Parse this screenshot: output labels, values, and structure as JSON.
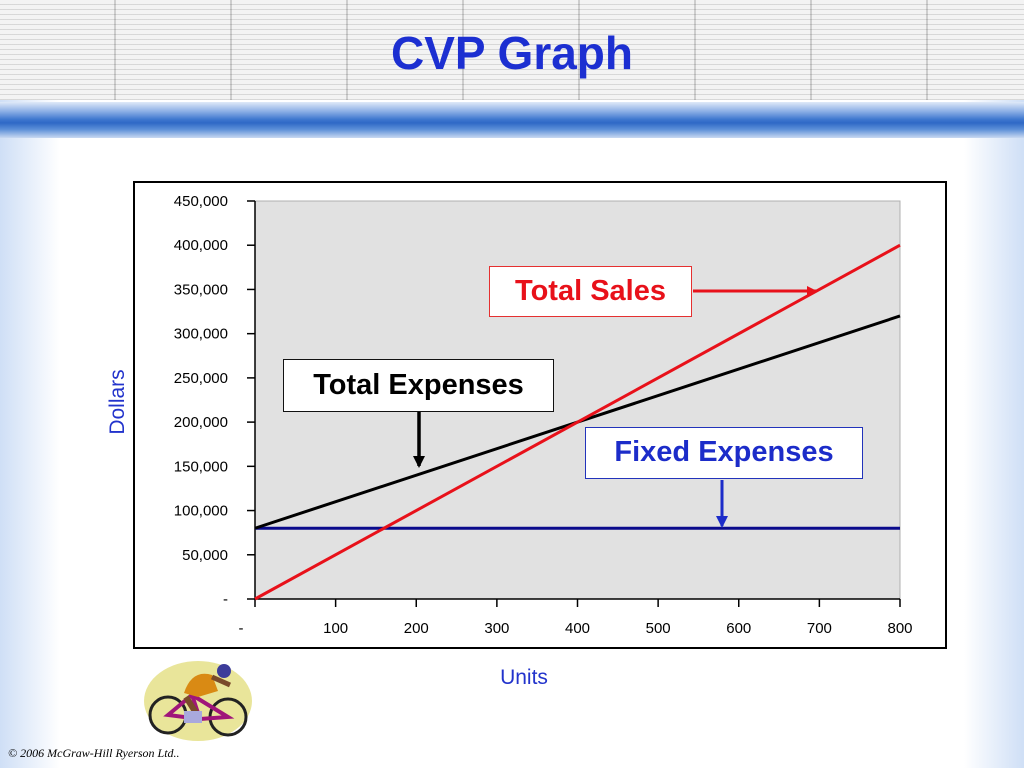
{
  "slide": {
    "title": "CVP Graph",
    "copyright": "© 2006 McGraw-Hill Ryerson Ltd.."
  },
  "colors": {
    "title": "#1c2fd1",
    "total_sales": "#e8111a",
    "total_expenses": "#000000",
    "fixed_expenses": "#0a0a8c",
    "plot_background": "#e1e1e1",
    "axis_label": "#2233cc"
  },
  "chart_data": {
    "type": "line",
    "xlabel": "Units",
    "ylabel": "Dollars",
    "xlim": [
      0,
      800
    ],
    "ylim": [
      0,
      450000
    ],
    "x_ticks": [
      {
        "value": 0,
        "label": "-"
      },
      {
        "value": 100,
        "label": "100"
      },
      {
        "value": 200,
        "label": "200"
      },
      {
        "value": 300,
        "label": "300"
      },
      {
        "value": 400,
        "label": "400"
      },
      {
        "value": 500,
        "label": "500"
      },
      {
        "value": 600,
        "label": "600"
      },
      {
        "value": 700,
        "label": "700"
      },
      {
        "value": 800,
        "label": "800"
      }
    ],
    "y_ticks": [
      {
        "value": 0,
        "label": "-"
      },
      {
        "value": 50000,
        "label": "50,000"
      },
      {
        "value": 100000,
        "label": "100,000"
      },
      {
        "value": 150000,
        "label": "150,000"
      },
      {
        "value": 200000,
        "label": "200,000"
      },
      {
        "value": 250000,
        "label": "250,000"
      },
      {
        "value": 300000,
        "label": "300,000"
      },
      {
        "value": 350000,
        "label": "350,000"
      },
      {
        "value": 400000,
        "label": "400,000"
      },
      {
        "value": 450000,
        "label": "450,000"
      }
    ],
    "grid": false,
    "series": [
      {
        "key": "total_sales",
        "x": [
          0,
          800
        ],
        "y": [
          0,
          400000
        ]
      },
      {
        "key": "total_expenses",
        "x": [
          0,
          800
        ],
        "y": [
          80000,
          320000
        ]
      },
      {
        "key": "fixed_expenses",
        "x": [
          0,
          800
        ],
        "y": [
          80000,
          80000
        ]
      }
    ],
    "annotations": [
      {
        "key": "total_sales",
        "text": "Total Sales"
      },
      {
        "key": "total_expenses",
        "text": "Total Expenses"
      },
      {
        "key": "fixed_expenses",
        "text": "Fixed Expenses"
      }
    ]
  }
}
